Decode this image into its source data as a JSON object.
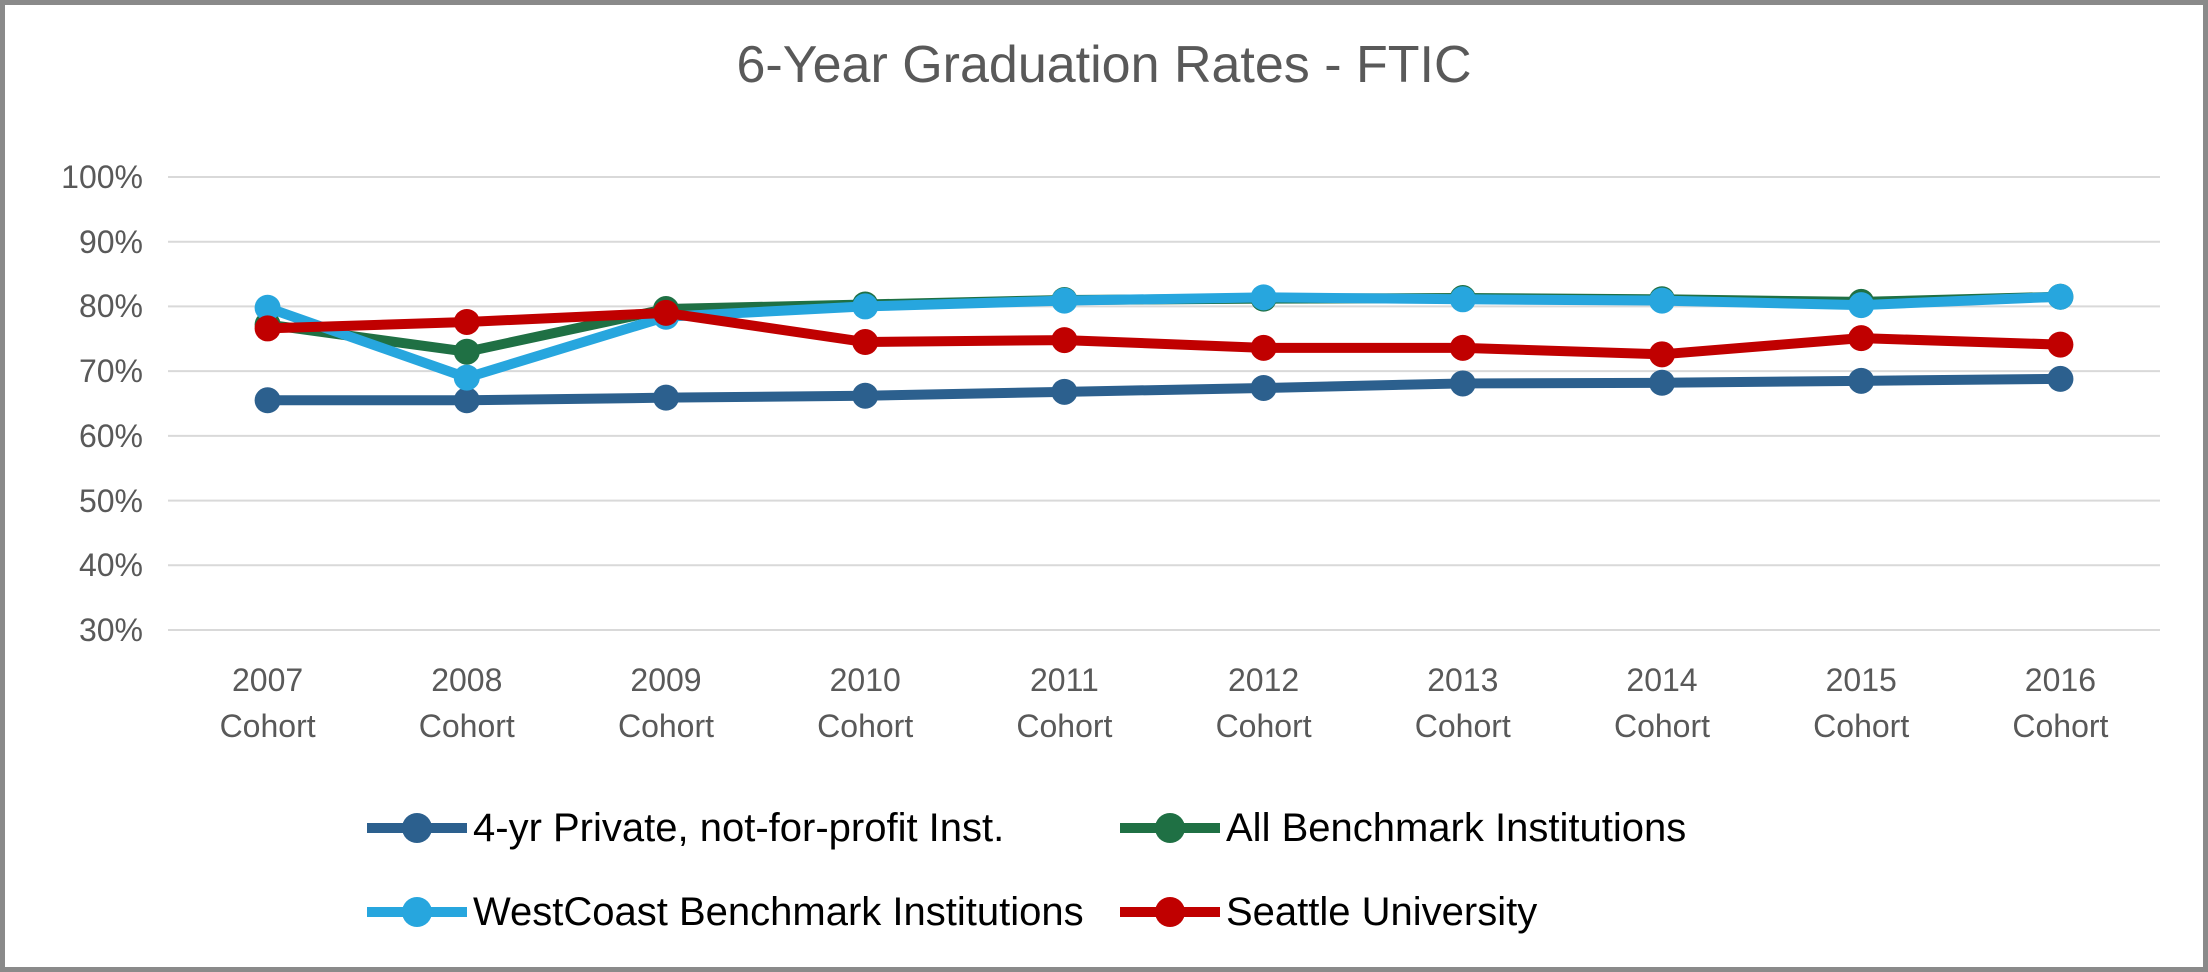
{
  "chart_data": {
    "type": "line",
    "title": "6-Year Graduation Rates - FTIC",
    "categories": [
      "2007",
      "2008",
      "2009",
      "2010",
      "2011",
      "2012",
      "2013",
      "2014",
      "2015",
      "2016"
    ],
    "category_sublabel": "Cohort",
    "xlabel": "",
    "ylabel": "",
    "ylim": [
      30,
      100
    ],
    "y_ticks": [
      {
        "value": 100,
        "label": "100%"
      },
      {
        "value": 90,
        "label": "90%"
      },
      {
        "value": 80,
        "label": "80%"
      },
      {
        "value": 70,
        "label": "70%"
      },
      {
        "value": 60,
        "label": "60%"
      },
      {
        "value": 50,
        "label": "50%"
      },
      {
        "value": 40,
        "label": "40%"
      },
      {
        "value": 30,
        "label": "30%"
      }
    ],
    "grid": true,
    "legend_position": "bottom",
    "series": [
      {
        "name": "4-yr Private, not-for-profit Inst.",
        "color": "#2C608E",
        "values": [
          65.5,
          65.5,
          65.9,
          66.2,
          66.8,
          67.4,
          68.1,
          68.2,
          68.5,
          68.8
        ]
      },
      {
        "name": "All Benchmark Institutions",
        "color": "#1F7044",
        "values": [
          77.2,
          73.0,
          79.6,
          80.3,
          81.0,
          81.2,
          81.3,
          81.1,
          80.7,
          81.5
        ]
      },
      {
        "name": "WestCoast Benchmark Institutions",
        "color": "#27A6DE",
        "values": [
          79.8,
          69.0,
          78.4,
          80.0,
          80.9,
          81.4,
          81.1,
          80.9,
          80.2,
          81.5
        ]
      },
      {
        "name": "Seattle University",
        "color": "#C00000",
        "values": [
          76.6,
          77.6,
          79.0,
          74.5,
          74.8,
          73.6,
          73.6,
          72.6,
          75.1,
          74.1
        ]
      }
    ],
    "legend_rows": [
      [
        0,
        1
      ],
      [
        2,
        3
      ]
    ],
    "colors": {
      "grid": "#D9D9D9",
      "axis_text": "#595959",
      "title_text": "#595959",
      "legend_text": "#000000",
      "frame_border": "#8A8A8A",
      "background": "#FFFFFF"
    }
  }
}
